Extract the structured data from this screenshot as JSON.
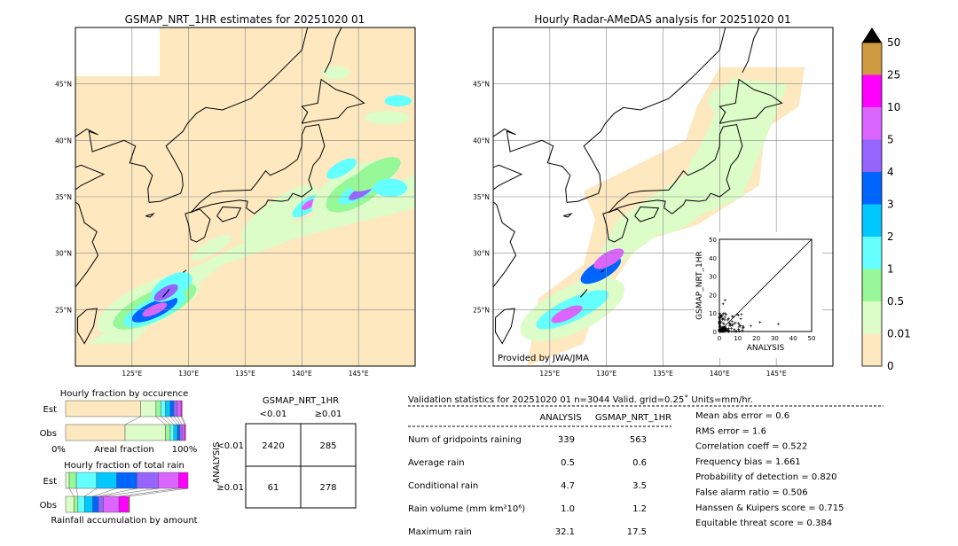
{
  "chart_data": [
    {
      "type": "heatmap",
      "title": "GSMAP_NRT_1HR estimates for 20251020 01",
      "lon_ticks": [
        "125°E",
        "130°E",
        "135°E",
        "140°E",
        "145°E"
      ],
      "lat_ticks": [
        "45°N",
        "40°N",
        "35°N",
        "30°N",
        "25°N"
      ],
      "lon_range": [
        120,
        150
      ],
      "lat_range": [
        20,
        50
      ]
    },
    {
      "type": "heatmap",
      "title": "Hourly Radar-AMeDAS analysis for 20251020 01",
      "credit": "Provided by JWA/JMA",
      "lon_ticks": [
        "125°E",
        "130°E",
        "135°E",
        "140°E",
        "145°E"
      ],
      "lat_ticks": [
        "45°N",
        "40°N",
        "35°N",
        "30°N",
        "25°N"
      ]
    },
    {
      "type": "scatter",
      "xlabel": "ANALYSIS",
      "ylabel": "GSMAP_NRT_1HR",
      "xlim": [
        0,
        50
      ],
      "ylim": [
        0,
        50
      ],
      "ticks": [
        "0",
        "10",
        "20",
        "30",
        "40",
        "50"
      ]
    },
    {
      "type": "colorbar",
      "levels": [
        "0",
        "0.01",
        "0.5",
        "1",
        "2",
        "3",
        "4",
        "5",
        "10",
        "25",
        "50"
      ],
      "colors": [
        "#fde8c0",
        "#dcfcc8",
        "#96f896",
        "#64ffff",
        "#00c8ff",
        "#0064ff",
        "#9664ff",
        "#dc64ff",
        "#ff00ff",
        "#d09a40"
      ]
    },
    {
      "type": "bar",
      "title": "Hourly fraction by occurence",
      "xlabel": "Areal fraction",
      "x_left": "0%",
      "x_right": "100%",
      "rows": [
        "Est",
        "Obs"
      ],
      "est": [
        63,
        13,
        4,
        4,
        4,
        3,
        3,
        3,
        1
      ],
      "obs": [
        50,
        34,
        4,
        3,
        3,
        2,
        2,
        2,
        1
      ]
    },
    {
      "type": "bar",
      "title": "Hourly fraction of total rain",
      "xlabel": "Rainfall accumulation by amount",
      "rows": [
        "Est",
        "Obs"
      ],
      "est": [
        3,
        6,
        17,
        17,
        17,
        18,
        17,
        8
      ],
      "obs": [
        10,
        5,
        8,
        10,
        7,
        6,
        19,
        12,
        1
      ]
    },
    {
      "type": "table",
      "title": "GSMAP_NRT_1HR",
      "col_headers": [
        "<0.01",
        "≥0.01"
      ],
      "row_label": "ANALYSIS",
      "row_headers": [
        "<0.01",
        "≥0.01"
      ],
      "cells": [
        [
          "2420",
          "285"
        ],
        [
          "61",
          "278"
        ]
      ]
    }
  ],
  "stats": {
    "header": "Validation statistics for 20251020 01  n=3044 Valid. grid=0.25˚ Units=mm/hr.",
    "cols": [
      "ANALYSIS",
      "GSMAP_NRT_1HR"
    ],
    "rows": [
      {
        "label": "Num of gridpoints raining",
        "a": "339",
        "g": "563"
      },
      {
        "label": "Average rain",
        "a": "0.5",
        "g": "0.6"
      },
      {
        "label": "Conditional rain",
        "a": "4.7",
        "g": "3.5"
      },
      {
        "label": "Rain volume (mm km²10⁶)",
        "a": "1.0",
        "g": "1.2"
      },
      {
        "label": "Maximum rain",
        "a": "32.1",
        "g": "17.5"
      }
    ],
    "scores": [
      "Mean abs error =    0.6",
      "RMS error =    1.6",
      "Correlation coeff =  0.522",
      "Frequency bias =  1.661",
      "Probability of detection =  0.820",
      "False alarm ratio =  0.506",
      "Hanssen & Kuipers score =  0.715",
      "Equitable threat score =  0.384"
    ]
  }
}
